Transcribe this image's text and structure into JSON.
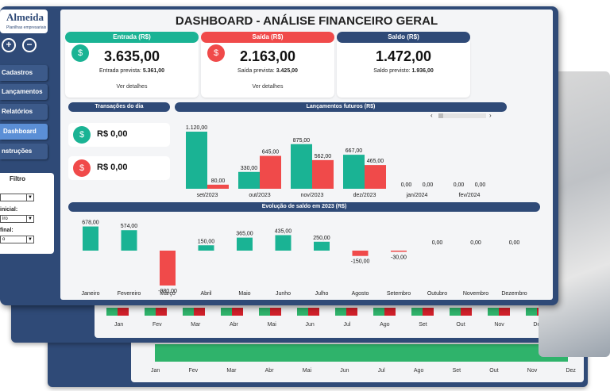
{
  "logo": {
    "name": "Almeida",
    "subtitle": "Planilhas empresariais"
  },
  "sidebar": {
    "zoom_in": "+",
    "zoom_out": "−",
    "items": [
      {
        "label": "Cadastros"
      },
      {
        "label": "Lançamentos"
      },
      {
        "label": "Relatórios"
      },
      {
        "label": "Dashboard"
      },
      {
        "label": "nstruções"
      }
    ],
    "filter": {
      "title": "Filtro",
      "labels": [
        "inicial:",
        "final:"
      ],
      "values": [
        "",
        "iro",
        "o"
      ]
    }
  },
  "dashboard": {
    "title": "DASHBOARD - ANÁLISE FINANCEIRO GERAL",
    "cards": [
      {
        "header": "Entrada (R$)",
        "value": "3.635,00",
        "prev_label": "Entrada prevista:",
        "prev_value": "5.361,00",
        "link": "Ver detalhes",
        "color": "#1ab394"
      },
      {
        "header": "Saída (R$)",
        "value": "2.163,00",
        "prev_label": "Saída prevista:",
        "prev_value": "3.425,00",
        "link": "Ver detalhes",
        "color": "#f04a4a"
      },
      {
        "header": "Saldo (R$)",
        "value": "1.472,00",
        "prev_label": "Saldo previsto:",
        "prev_value": "1.936,00",
        "link": "",
        "color": "#2f4a77"
      }
    ],
    "transactions_title": "Transações do dia",
    "transactions": [
      {
        "value": "R$ 0,00",
        "color": "#1ab394"
      },
      {
        "value": "R$ 0,00",
        "color": "#f04a4a"
      }
    ],
    "future_title": "Lançamentos futuros (R$)",
    "evolution_title": "Evolução de saldo em 2023 (R$)",
    "scroll_left": "‹",
    "scroll_right": "›"
  },
  "background": {
    "months_a": [
      "Jan",
      "Fev",
      "Mar",
      "Abr",
      "Mai",
      "Jun",
      "Jul",
      "Ago",
      "Set",
      "Out",
      "Nov",
      "Dez"
    ],
    "months_b": [
      "Jan",
      "Fev",
      "Mar",
      "Abr",
      "Mai",
      "Jun",
      "Jul",
      "Ago",
      "Set",
      "Out",
      "Nov",
      "Dez"
    ]
  },
  "chart_data": [
    {
      "type": "bar",
      "title": "Lançamentos futuros (R$)",
      "categories": [
        "set/2023",
        "out/2023",
        "nov/2023",
        "dez/2023",
        "jan/2024",
        "fev/2024"
      ],
      "series": [
        {
          "values": [
            1120,
            330,
            875,
            667,
            0,
            0
          ],
          "color": "#1ab394"
        },
        {
          "values": [
            80,
            645,
            562,
            465,
            0,
            0
          ],
          "color": "#f04a4a"
        }
      ],
      "labels": [
        [
          "1.120,00",
          "330,00",
          "875,00",
          "667,00",
          "0,00",
          "0,00"
        ],
        [
          "80,00",
          "645,00",
          "562,00",
          "465,00",
          "0,00",
          "0,00"
        ]
      ]
    },
    {
      "type": "bar",
      "title": "Evolução de saldo em 2023 (R$)",
      "categories": [
        "Janeiro",
        "Fevereiro",
        "Março",
        "Abril",
        "Maio",
        "Junho",
        "Julho",
        "Agosto",
        "Setembro",
        "Outubro",
        "Novembro",
        "Dezembro"
      ],
      "values": [
        678,
        574,
        -980,
        150,
        365,
        435,
        250,
        -150,
        -30,
        0,
        0,
        0
      ],
      "labels": [
        "678,00",
        "574,00",
        "-980,00",
        "150,00",
        "365,00",
        "435,00",
        "250,00",
        "-150,00",
        "-30,00",
        "0,00",
        "0,00",
        "0,00"
      ],
      "positive_color": "#1ab394",
      "negative_color": "#f04a4a"
    }
  ]
}
